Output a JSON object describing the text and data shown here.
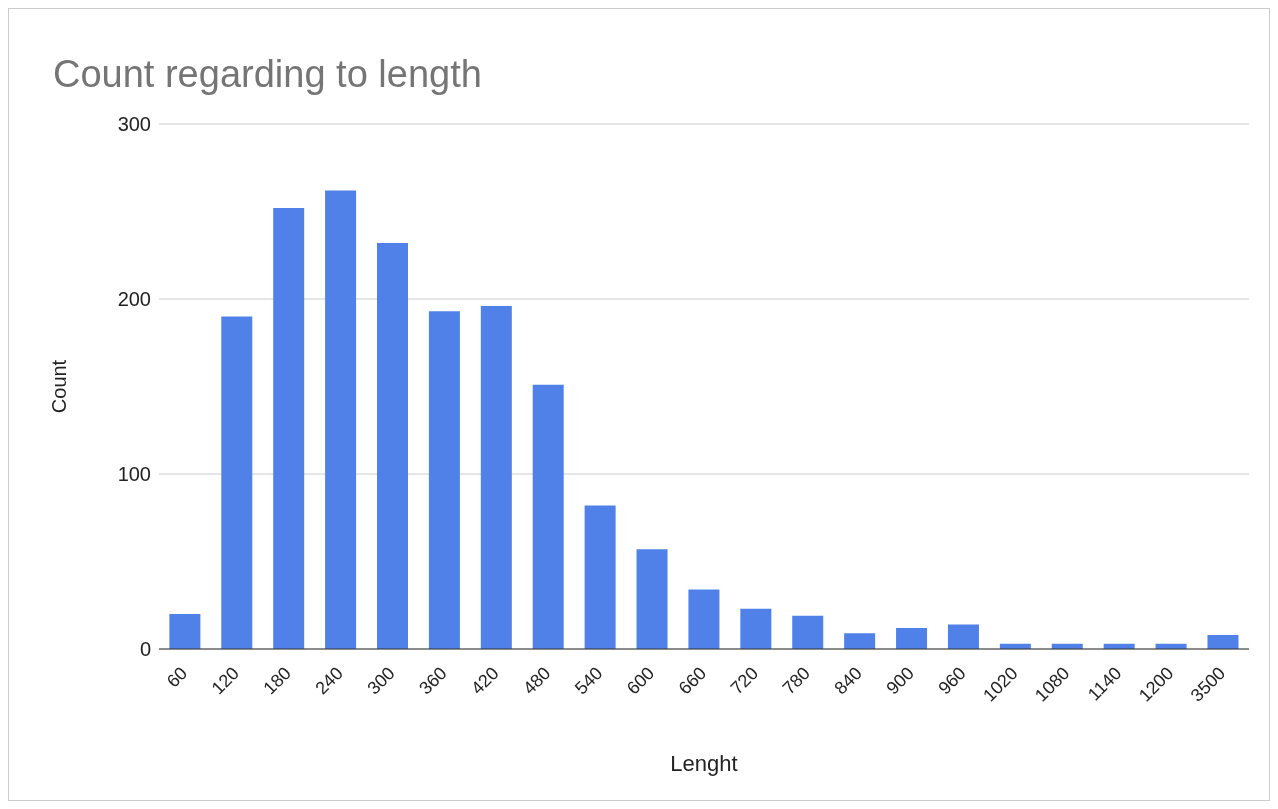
{
  "chart_data": {
    "type": "bar",
    "title": "Count regarding to length",
    "xlabel": "Lenght",
    "ylabel": "Count",
    "categories": [
      "60",
      "120",
      "180",
      "240",
      "300",
      "360",
      "420",
      "480",
      "540",
      "600",
      "660",
      "720",
      "780",
      "840",
      "900",
      "960",
      "1020",
      "1080",
      "1140",
      "1200",
      "3500"
    ],
    "values": [
      20,
      190,
      252,
      262,
      232,
      193,
      196,
      151,
      82,
      57,
      34,
      23,
      19,
      9,
      12,
      14,
      3,
      3,
      3,
      3,
      8
    ],
    "color": "#4f81e9",
    "ylim": [
      0,
      300
    ],
    "yticks": [
      0,
      100,
      200,
      300
    ],
    "grid": "y"
  }
}
